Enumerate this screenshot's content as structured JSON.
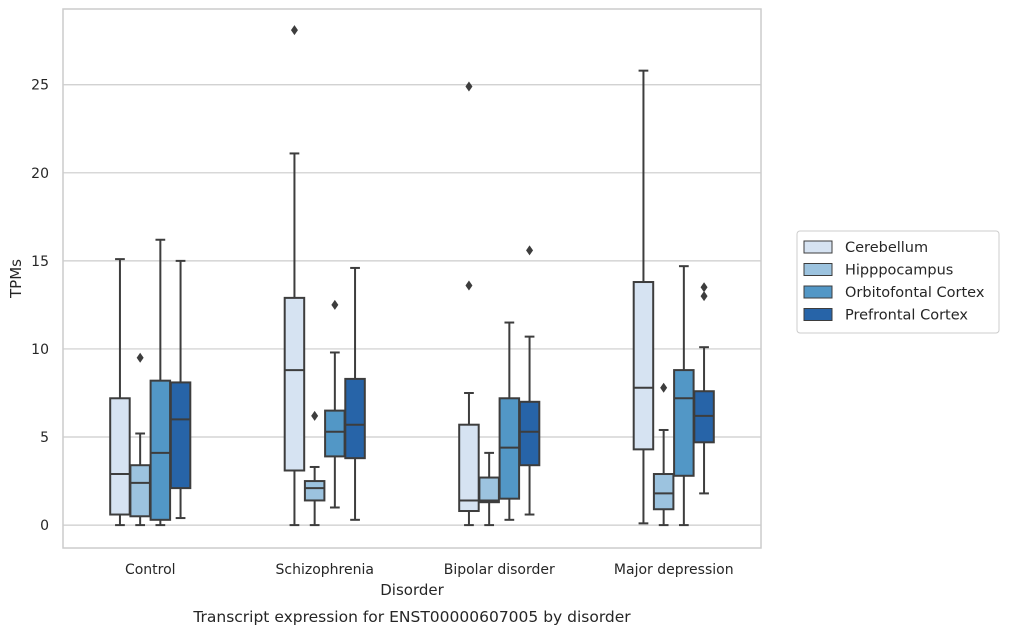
{
  "caption": "Transcript expression for ENST00000607005 by disorder",
  "chart_data": {
    "type": "box",
    "title": "",
    "xlabel": "Disorder",
    "ylabel": "TPMs",
    "ylim": [
      -1.3,
      29.3
    ],
    "yticks": [
      0,
      5,
      10,
      15,
      20,
      25
    ],
    "grid": "horizontal",
    "legend_position": "right",
    "categories": [
      "Control",
      "Schizophrenia",
      "Bipolar disorder",
      "Major depression"
    ],
    "series": [
      {
        "name": "Cerebellum",
        "color": "#d6e3f2",
        "boxes": [
          {
            "whisker_low": 0.0,
            "q1": 0.6,
            "median": 2.9,
            "q3": 7.2,
            "whisker_high": 15.1,
            "outliers": []
          },
          {
            "whisker_low": 0.0,
            "q1": 3.1,
            "median": 8.8,
            "q3": 12.9,
            "whisker_high": 21.1,
            "outliers": [
              28.1
            ]
          },
          {
            "whisker_low": 0.0,
            "q1": 0.8,
            "median": 1.4,
            "q3": 5.7,
            "whisker_high": 7.5,
            "outliers": [
              13.6,
              24.9
            ]
          },
          {
            "whisker_low": 0.1,
            "q1": 4.3,
            "median": 7.8,
            "q3": 13.8,
            "whisker_high": 25.8,
            "outliers": []
          }
        ]
      },
      {
        "name": "Hipppocampus",
        "color": "#9cc3df",
        "boxes": [
          {
            "whisker_low": 0.0,
            "q1": 0.5,
            "median": 2.4,
            "q3": 3.4,
            "whisker_high": 5.2,
            "outliers": [
              9.5
            ]
          },
          {
            "whisker_low": 0.0,
            "q1": 1.4,
            "median": 2.1,
            "q3": 2.5,
            "whisker_high": 3.3,
            "outliers": [
              6.2
            ]
          },
          {
            "whisker_low": 0.0,
            "q1": 1.3,
            "median": 1.4,
            "q3": 2.7,
            "whisker_high": 4.1,
            "outliers": []
          },
          {
            "whisker_low": 0.0,
            "q1": 0.9,
            "median": 1.8,
            "q3": 2.9,
            "whisker_high": 5.4,
            "outliers": [
              7.8
            ]
          }
        ]
      },
      {
        "name": "Orbitofontal Cortex",
        "color": "#5297c6",
        "boxes": [
          {
            "whisker_low": 0.0,
            "q1": 0.3,
            "median": 4.1,
            "q3": 8.2,
            "whisker_high": 16.2,
            "outliers": []
          },
          {
            "whisker_low": 1.0,
            "q1": 3.9,
            "median": 5.3,
            "q3": 6.5,
            "whisker_high": 9.8,
            "outliers": [
              12.5
            ]
          },
          {
            "whisker_low": 0.3,
            "q1": 1.5,
            "median": 4.4,
            "q3": 7.2,
            "whisker_high": 11.5,
            "outliers": []
          },
          {
            "whisker_low": 0.0,
            "q1": 2.8,
            "median": 7.2,
            "q3": 8.8,
            "whisker_high": 14.7,
            "outliers": []
          }
        ]
      },
      {
        "name": "Prefrontal Cortex",
        "color": "#2764a8",
        "boxes": [
          {
            "whisker_low": 0.4,
            "q1": 2.1,
            "median": 6.0,
            "q3": 8.1,
            "whisker_high": 15.0,
            "outliers": []
          },
          {
            "whisker_low": 0.3,
            "q1": 3.8,
            "median": 5.7,
            "q3": 8.3,
            "whisker_high": 14.6,
            "outliers": []
          },
          {
            "whisker_low": 0.6,
            "q1": 3.4,
            "median": 5.3,
            "q3": 7.0,
            "whisker_high": 10.7,
            "outliers": [
              15.6
            ]
          },
          {
            "whisker_low": 1.8,
            "q1": 4.7,
            "median": 6.2,
            "q3": 7.6,
            "whisker_high": 10.1,
            "outliers": [
              13.0,
              13.5
            ]
          }
        ]
      }
    ]
  }
}
